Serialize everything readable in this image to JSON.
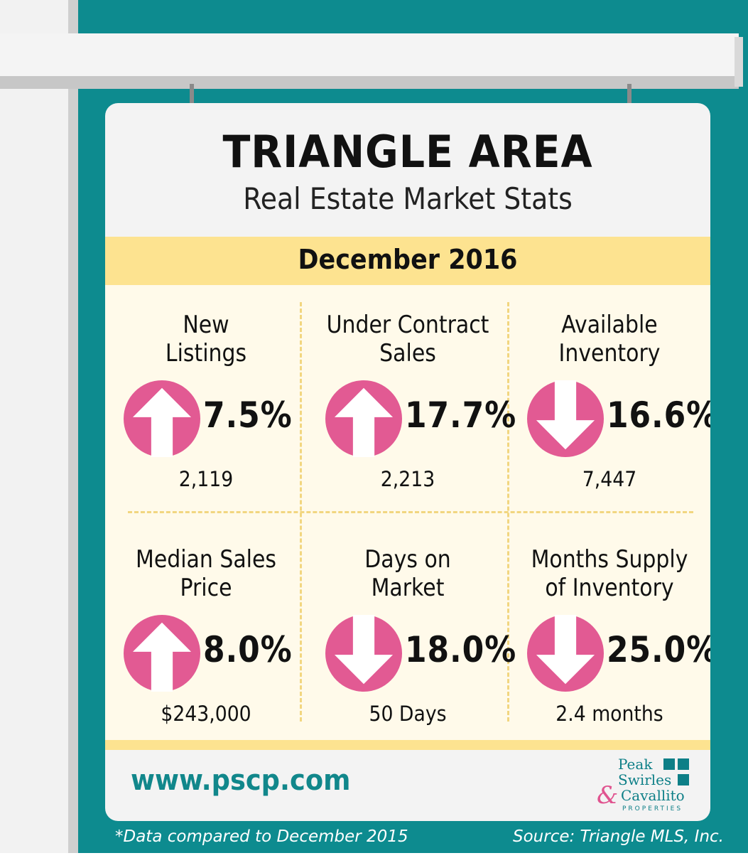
{
  "title": "TRIANGLE AREA",
  "subtitle": "Real Estate Market Stats",
  "period": "December 2016",
  "colors": {
    "background": "#0d8b8f",
    "board": "#f3f3f3",
    "band": "#fde390",
    "panel": "#fffaea",
    "arrow": "#e25a93",
    "url": "#11878b"
  },
  "stats": [
    {
      "label_line1": "New",
      "label_line2": "Listings",
      "direction": "up",
      "icon": "arrow-up-icon",
      "change": "7.5%",
      "value": "2,119"
    },
    {
      "label_line1": "Under Contract",
      "label_line2": "Sales",
      "direction": "up",
      "icon": "arrow-up-icon",
      "change": "17.7%",
      "value": "2,213"
    },
    {
      "label_line1": "Available",
      "label_line2": "Inventory",
      "direction": "down",
      "icon": "arrow-down-icon",
      "change": "16.6%",
      "value": "7,447"
    },
    {
      "label_line1": "Median Sales",
      "label_line2": "Price",
      "direction": "up",
      "icon": "arrow-up-icon",
      "change": "8.0%",
      "value": "$243,000"
    },
    {
      "label_line1": "Days on",
      "label_line2": "Market",
      "direction": "down",
      "icon": "arrow-down-icon",
      "change": "18.0%",
      "value": "50 Days"
    },
    {
      "label_line1": "Months Supply",
      "label_line2": "of Inventory",
      "direction": "down",
      "icon": "arrow-down-icon",
      "change": "25.0%",
      "value": "2.4 months"
    }
  ],
  "website": "www.pscp.com",
  "logo": {
    "line1": "Peak",
    "line2": "Swirles",
    "ampersand": "&",
    "line3": "Cavallito",
    "tagline": "PROPERTIES"
  },
  "footnote": "*Data compared to December 2015",
  "source": "Source: Triangle MLS, Inc."
}
